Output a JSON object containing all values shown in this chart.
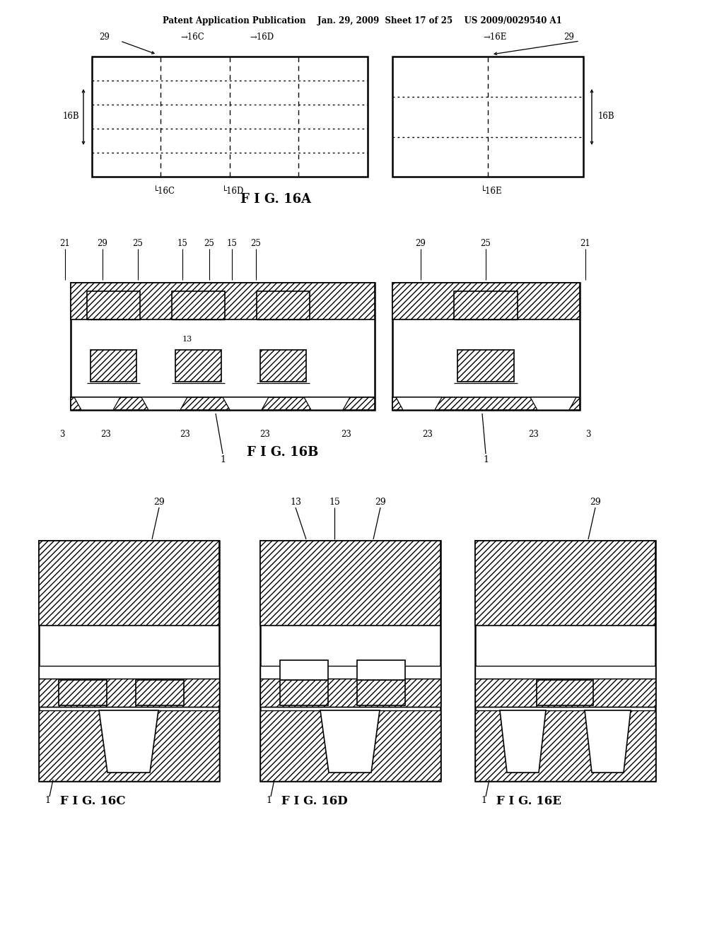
{
  "bg_color": "#ffffff",
  "header": "Patent Application Publication    Jan. 29, 2009  Sheet 17 of 25    US 2009/0029540 A1",
  "fig16A_label": "F I G. 16A",
  "fig16B_label": "F I G. 16B",
  "fig16C_label": "F I G. 16C",
  "fig16D_label": "F I G. 16D",
  "fig16E_label": "F I G. 16E"
}
